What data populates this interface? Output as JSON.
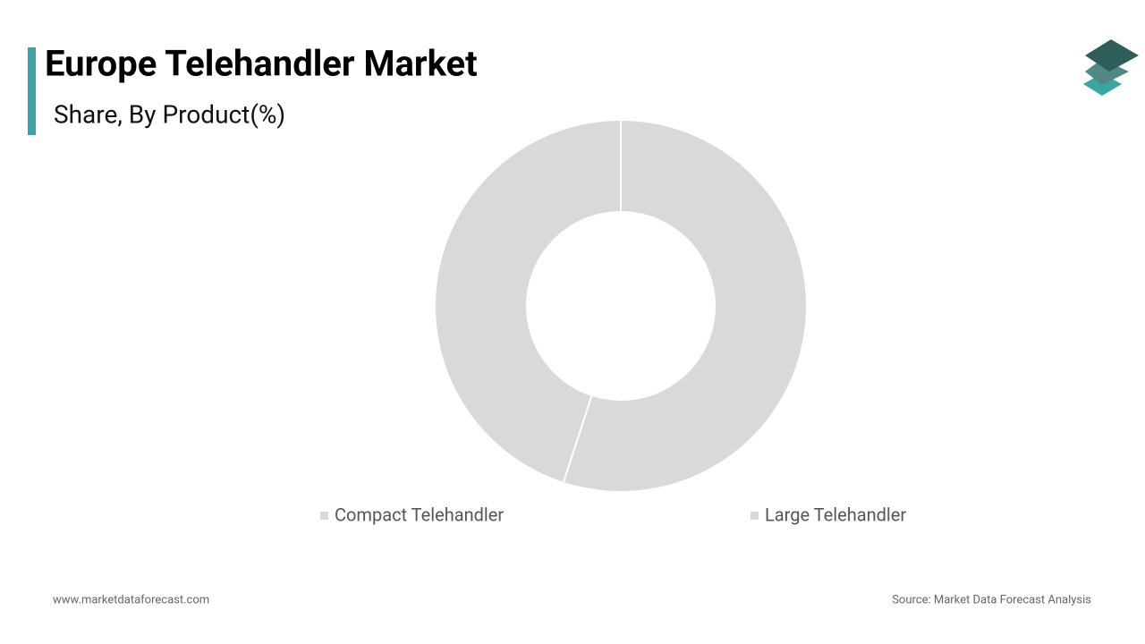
{
  "chart_data": {
    "type": "donut",
    "title": "Europe Telehandler Market",
    "subtitle": "Share, By Product(%)",
    "categories": [
      "Compact Telehandler",
      "Large Telehandler"
    ],
    "values": [
      55,
      45
    ],
    "colors": [
      "#d9d9d9",
      "#d9d9d9"
    ]
  },
  "footer": {
    "website": "www.marketdataforecast.com",
    "source": "Source: Market Data Forecast Analysis"
  }
}
